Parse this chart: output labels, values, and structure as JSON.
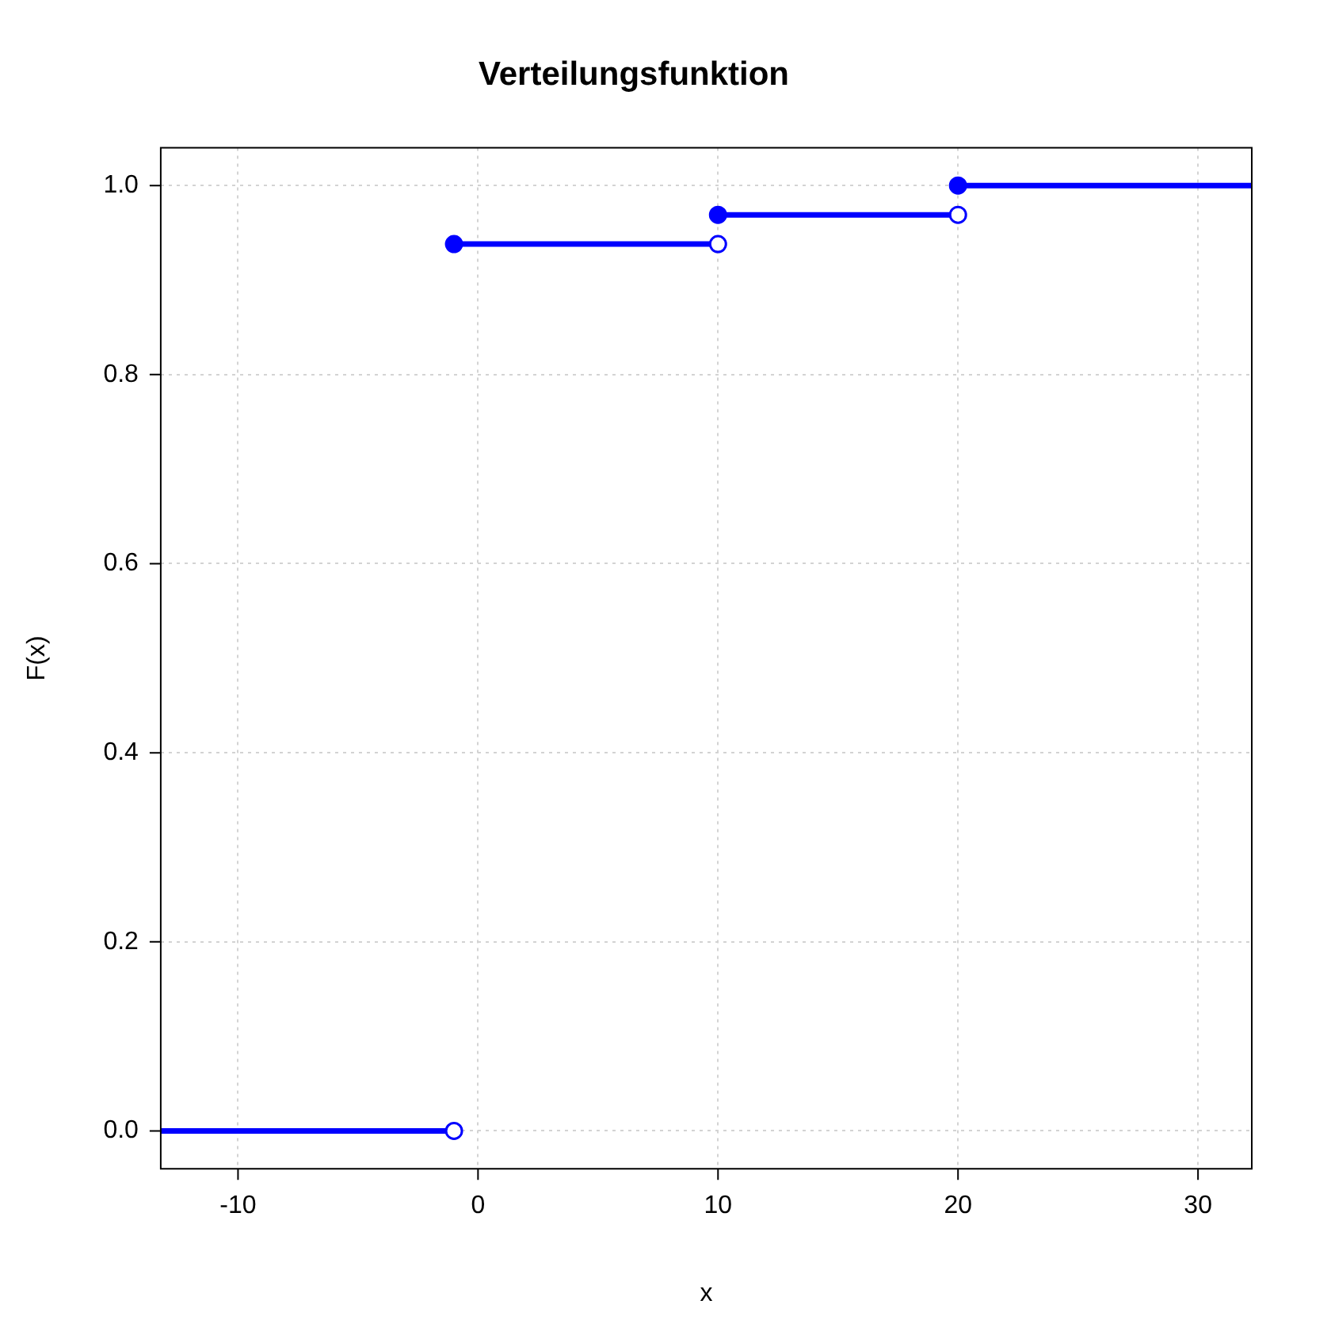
{
  "chart_data": {
    "type": "line",
    "title": "Verteilungsfunktion",
    "xlabel": "x",
    "ylabel": "F(x)",
    "series": [
      {
        "x": [
          -13.22,
          -1
        ],
        "values": [
          0,
          0
        ],
        "color": "#0000ff"
      },
      {
        "x": [
          -1,
          10
        ],
        "values": [
          0.938,
          0.938
        ],
        "color": "#0000ff"
      },
      {
        "x": [
          10,
          20
        ],
        "values": [
          0.969,
          0.969
        ],
        "color": "#0000ff"
      },
      {
        "x": [
          20,
          32.24
        ],
        "values": [
          1,
          1
        ],
        "color": "#0000ff"
      }
    ],
    "marker": "circle",
    "grid": true,
    "xlim": [
      -13.22,
      32.24
    ],
    "ylim": [
      -0.04,
      1.04
    ],
    "xticks": [
      -10,
      0,
      10,
      20,
      30
    ],
    "yticks": [
      {
        "value": 0,
        "label": "0.0"
      },
      0.2,
      0.4,
      0.6,
      0.8,
      {
        "value": 1,
        "label": "1.0"
      }
    ]
  }
}
